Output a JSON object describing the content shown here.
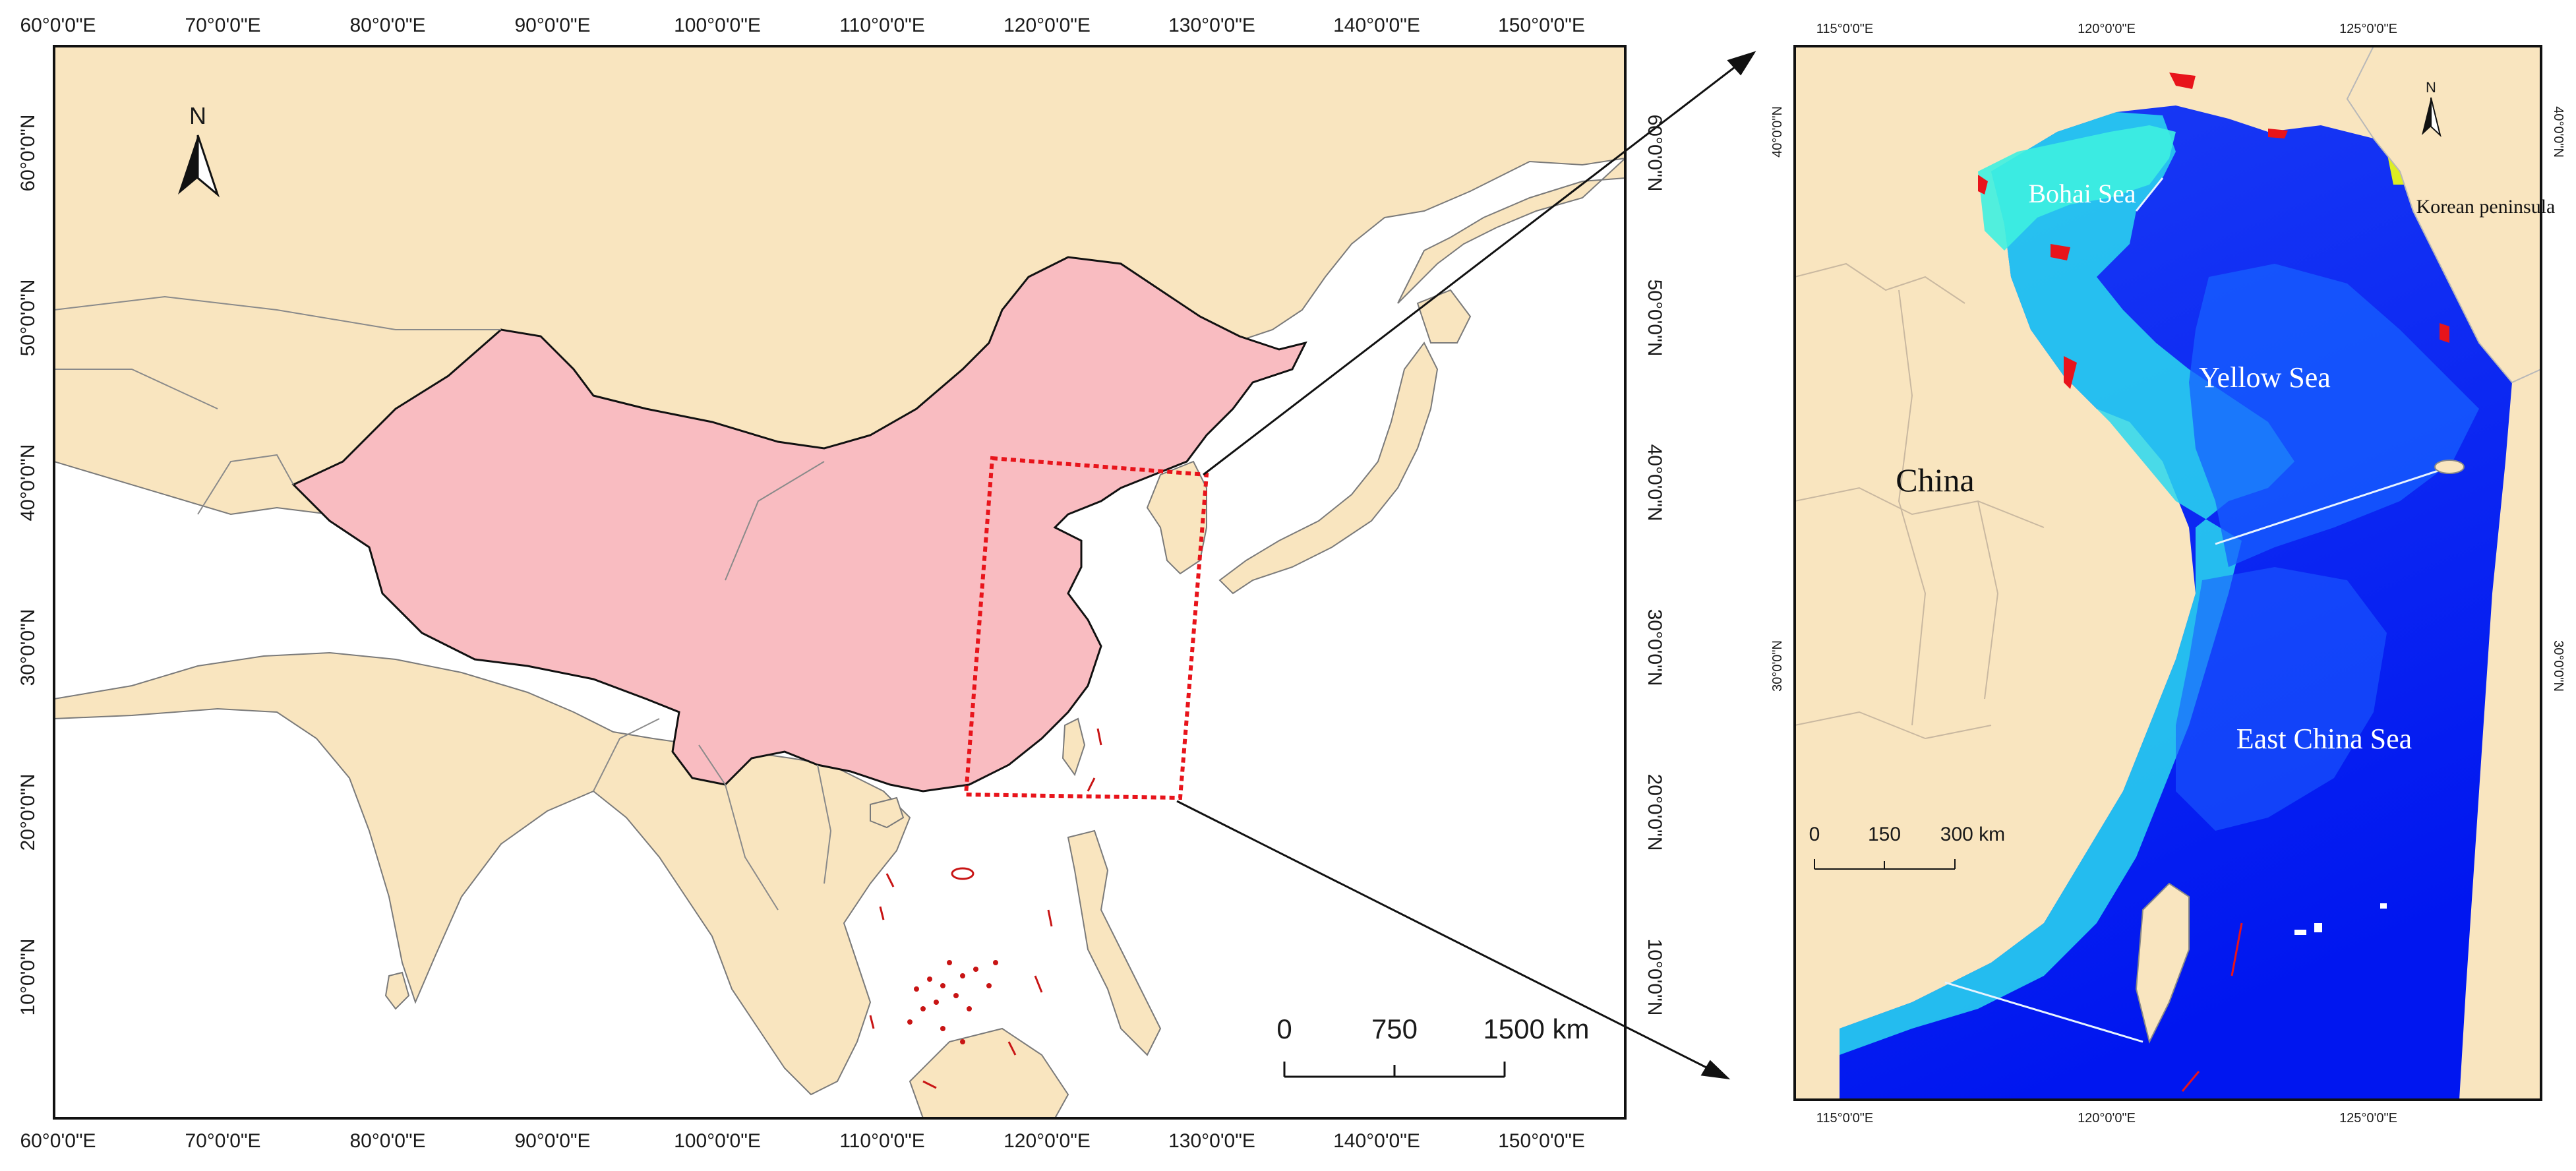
{
  "left_map": {
    "lon_ticks": [
      "60°0'0\"E",
      "70°0'0\"E",
      "80°0'0\"E",
      "90°0'0\"E",
      "100°0'0\"E",
      "110°0'0\"E",
      "120°0'0\"E",
      "130°0'0\"E",
      "140°0'0\"E",
      "150°0'0\"E"
    ],
    "lat_ticks": [
      "60°0'0\"N",
      "50°0'0\"N",
      "40°0'0\"N",
      "30°0'0\"N",
      "20°0'0\"N",
      "10°0'0\"N"
    ],
    "north_label": "N",
    "scale_labels": [
      "0",
      "750",
      "1500 km"
    ]
  },
  "right_map": {
    "lon_ticks": [
      "115°0'0\"E",
      "120°0'0\"E",
      "125°0'0\"E"
    ],
    "lat_ticks": [
      "40°0'0\"N",
      "30°0'0\"N"
    ],
    "north_label": "N",
    "scale_labels": [
      "0",
      "150",
      "300 km"
    ],
    "place_labels": {
      "bohai": "Bohai Sea",
      "yellow": "Yellow Sea",
      "east_china": "East China Sea",
      "china": "China",
      "korea": "Korean peninsula"
    }
  },
  "colors": {
    "land": "#f9e5bf",
    "china": "#f9bcc1",
    "sea_deep": "#0a1ff0",
    "sea_mid": "#1e6bff",
    "sea_turbid": "#22e0f0",
    "highlight_box": "#e8141b"
  },
  "icons": [
    "north-arrow-icon"
  ]
}
